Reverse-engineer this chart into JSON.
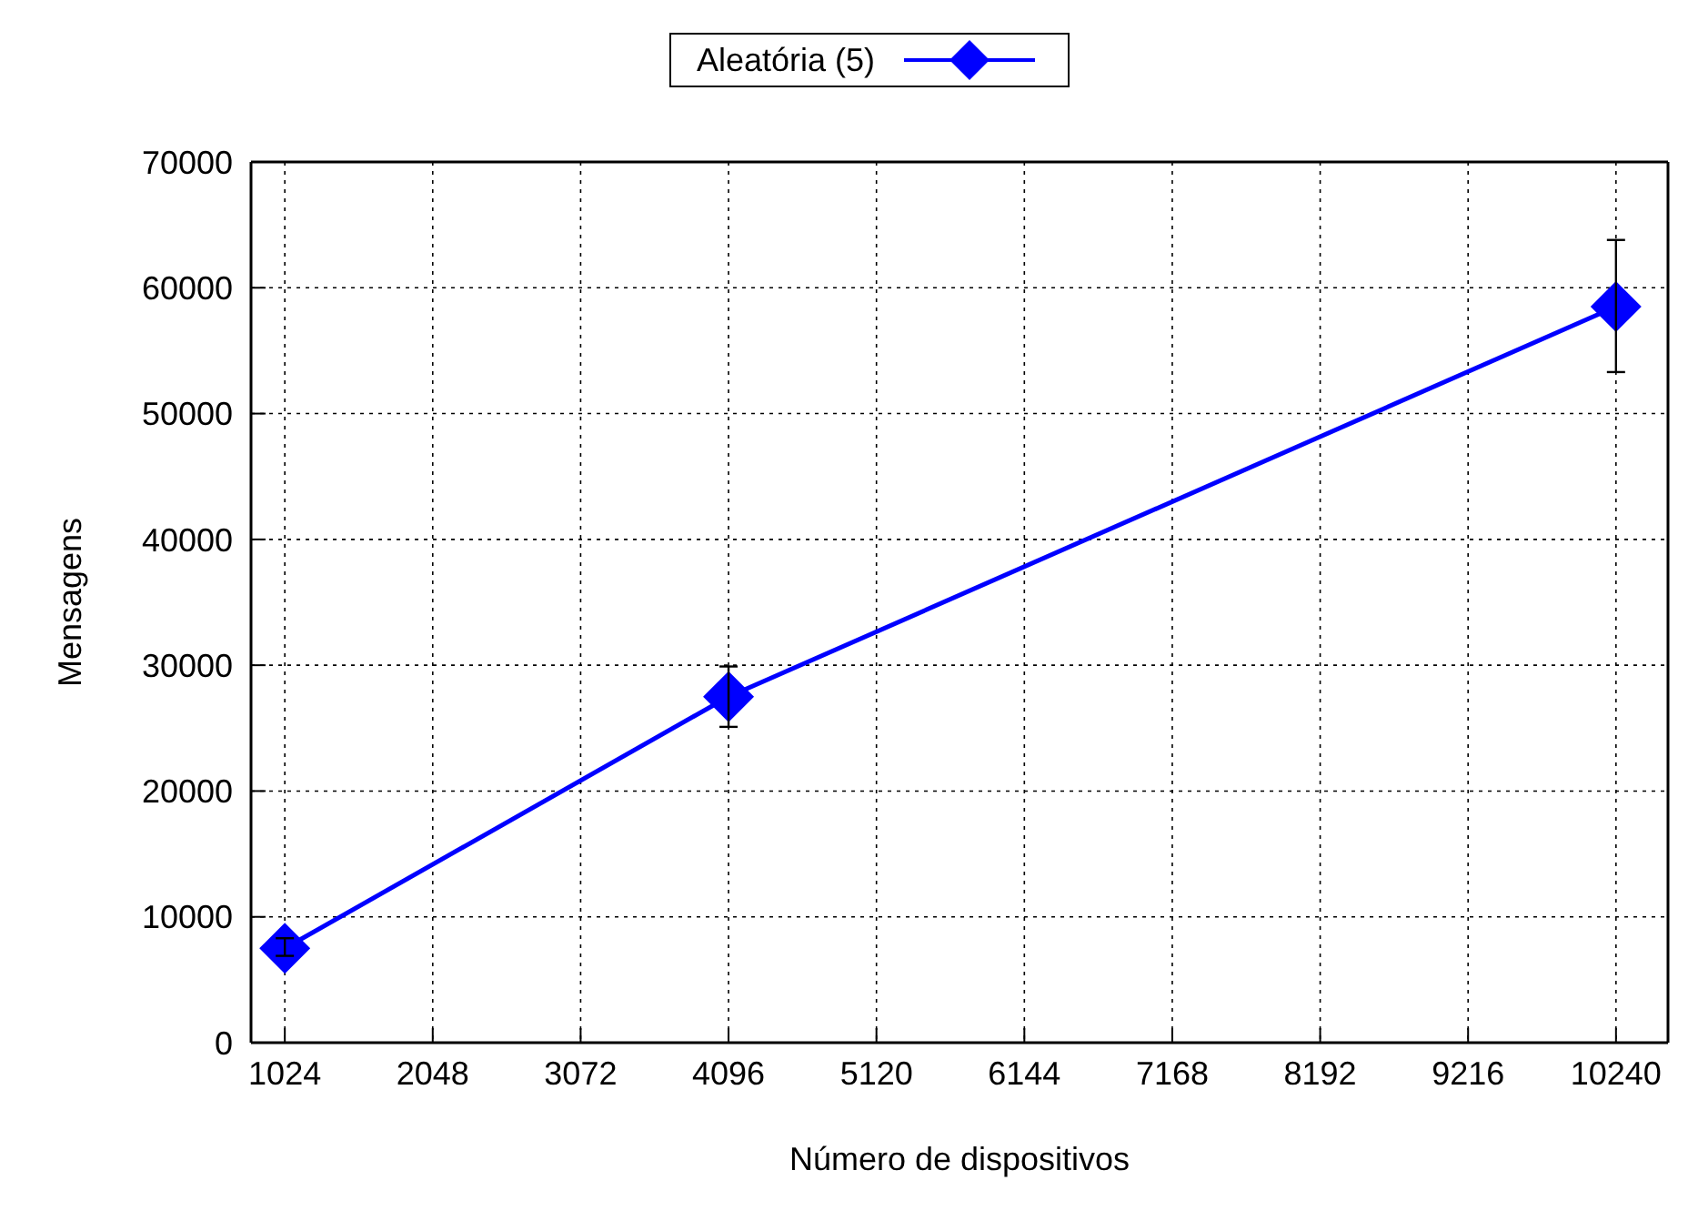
{
  "chart_data": {
    "type": "line",
    "xlabel": "Número de dispositivos",
    "ylabel": "Mensagens",
    "x": [
      1024,
      4096,
      10240
    ],
    "series": [
      {
        "name": "Aleatória (5)",
        "color": "#0000ff",
        "values": [
          7500,
          27500,
          58500
        ],
        "errors": [
          [
            6900,
            8300
          ],
          [
            25100,
            29900
          ],
          [
            53300,
            63800
          ]
        ]
      }
    ],
    "xlim": [
      790,
      10600
    ],
    "xticks": [
      1024,
      2048,
      3072,
      4096,
      5120,
      6144,
      7168,
      8192,
      9216,
      10240
    ],
    "ylim": [
      0,
      70000
    ],
    "yticks": [
      0,
      10000,
      20000,
      30000,
      40000,
      50000,
      60000,
      70000
    ],
    "grid": true,
    "legend": "top",
    "marker": "diamond",
    "line_style": "solid"
  }
}
